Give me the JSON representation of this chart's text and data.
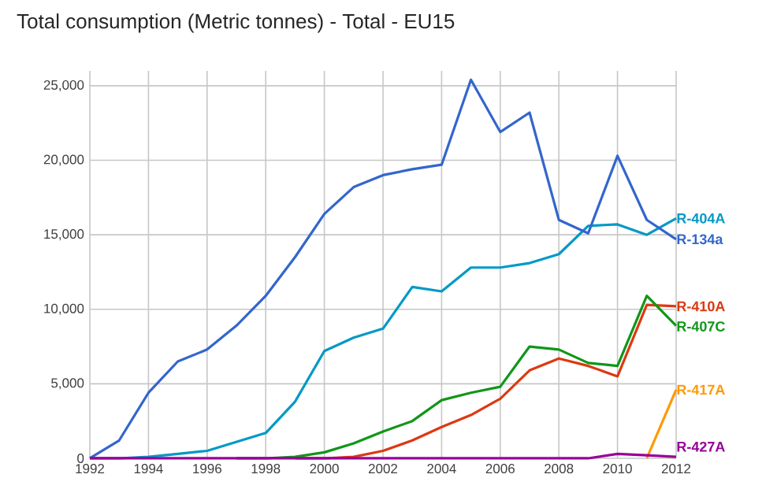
{
  "chart_data": {
    "type": "line",
    "title": "Total consumption (Metric tonnes) - Total - EU15",
    "x": [
      1992,
      1993,
      1994,
      1995,
      1996,
      1997,
      1998,
      1999,
      2000,
      2001,
      2002,
      2003,
      2004,
      2005,
      2006,
      2007,
      2008,
      2009,
      2010,
      2011,
      2012
    ],
    "xlim": [
      1992,
      2012
    ],
    "xticks": [
      1992,
      1994,
      1996,
      1998,
      2000,
      2002,
      2004,
      2006,
      2008,
      2010,
      2012
    ],
    "ylim": [
      0,
      26000
    ],
    "yticks": [
      {
        "value": 0,
        "label": "0"
      },
      {
        "value": 5000,
        "label": "5,000"
      },
      {
        "value": 10000,
        "label": "10,000"
      },
      {
        "value": 15000,
        "label": "15,000"
      },
      {
        "value": 20000,
        "label": "20,000"
      },
      {
        "value": 25000,
        "label": "25,000"
      }
    ],
    "grid": true,
    "marker": "none",
    "line_style": "solid",
    "series": [
      {
        "name": "R-404A",
        "color": "#0099c6",
        "values": [
          0,
          0,
          100,
          300,
          500,
          1100,
          1700,
          3800,
          7200,
          8100,
          8700,
          11500,
          11200,
          12800,
          12800,
          13100,
          13700,
          15600,
          15700,
          15000,
          16100
        ]
      },
      {
        "name": "R-134a",
        "color": "#3366cc",
        "values": [
          0,
          1200,
          4400,
          6500,
          7300,
          8900,
          10900,
          13500,
          16400,
          18200,
          19000,
          19400,
          19700,
          25400,
          21900,
          23200,
          16000,
          15100,
          20300,
          16000,
          14700
        ]
      },
      {
        "name": "R-410A",
        "color": "#dc3912",
        "values": [
          null,
          null,
          null,
          null,
          null,
          null,
          null,
          0,
          0,
          100,
          500,
          1200,
          2100,
          2900,
          4000,
          5900,
          6700,
          6200,
          5500,
          10300,
          10200
        ]
      },
      {
        "name": "R-407C",
        "color": "#109618",
        "values": [
          null,
          null,
          null,
          null,
          null,
          0,
          0,
          100,
          400,
          1000,
          1800,
          2500,
          3900,
          4400,
          4800,
          7500,
          7300,
          6400,
          6200,
          10900,
          8900
        ]
      },
      {
        "name": "R-417A",
        "color": "#ff9900",
        "values": [
          null,
          null,
          null,
          null,
          null,
          null,
          null,
          null,
          null,
          null,
          null,
          null,
          null,
          null,
          null,
          null,
          null,
          null,
          null,
          0,
          4600
        ]
      },
      {
        "name": "R-427A",
        "color": "#990099",
        "values": [
          0,
          0,
          0,
          0,
          0,
          0,
          0,
          0,
          0,
          0,
          0,
          0,
          0,
          0,
          0,
          0,
          0,
          0,
          300,
          200,
          100
        ]
      }
    ]
  }
}
